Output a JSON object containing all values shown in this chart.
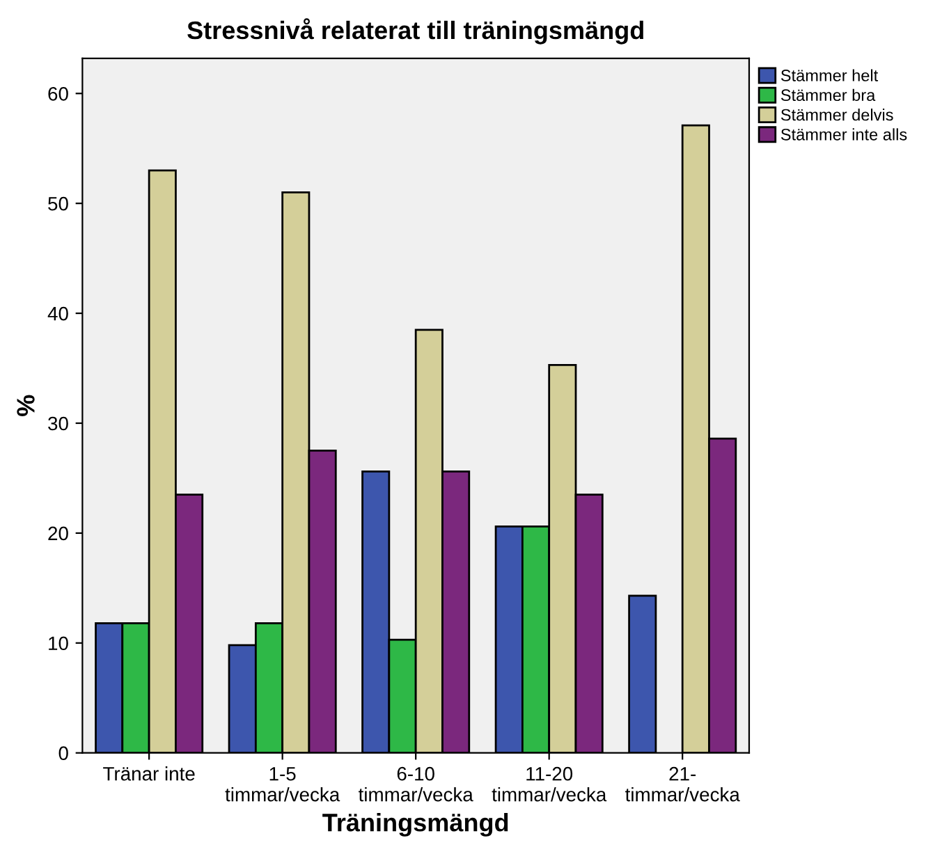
{
  "chart_data": {
    "type": "bar",
    "title": "Stressnivå relaterat till träningsmängd",
    "xlabel": "Träningsmängd",
    "ylabel": "%",
    "categories": [
      "Tränar inte",
      "1-5\ntimmar/vecka",
      "6-10\ntimmar/vecka",
      "11-20\ntimmar/vecka",
      "21-\ntimmar/vecka"
    ],
    "series": [
      {
        "name": "Stämmer helt",
        "color": "#3d56ad",
        "values": [
          11.8,
          9.8,
          25.6,
          20.6,
          14.3
        ]
      },
      {
        "name": "Stämmer bra",
        "color": "#2eb847",
        "values": [
          11.8,
          11.8,
          10.3,
          20.6,
          null
        ]
      },
      {
        "name": "Stämmer delvis",
        "color": "#d4cf99",
        "values": [
          53.0,
          51.0,
          38.5,
          35.3,
          57.1
        ]
      },
      {
        "name": "Stämmer inte alls",
        "color": "#7b287d",
        "values": [
          23.5,
          27.5,
          25.6,
          23.5,
          28.6
        ]
      }
    ],
    "ylim": [
      0,
      63.2
    ],
    "yticks": [
      0,
      10,
      20,
      30,
      40,
      50,
      60
    ],
    "grid": false,
    "legend": "top right"
  }
}
